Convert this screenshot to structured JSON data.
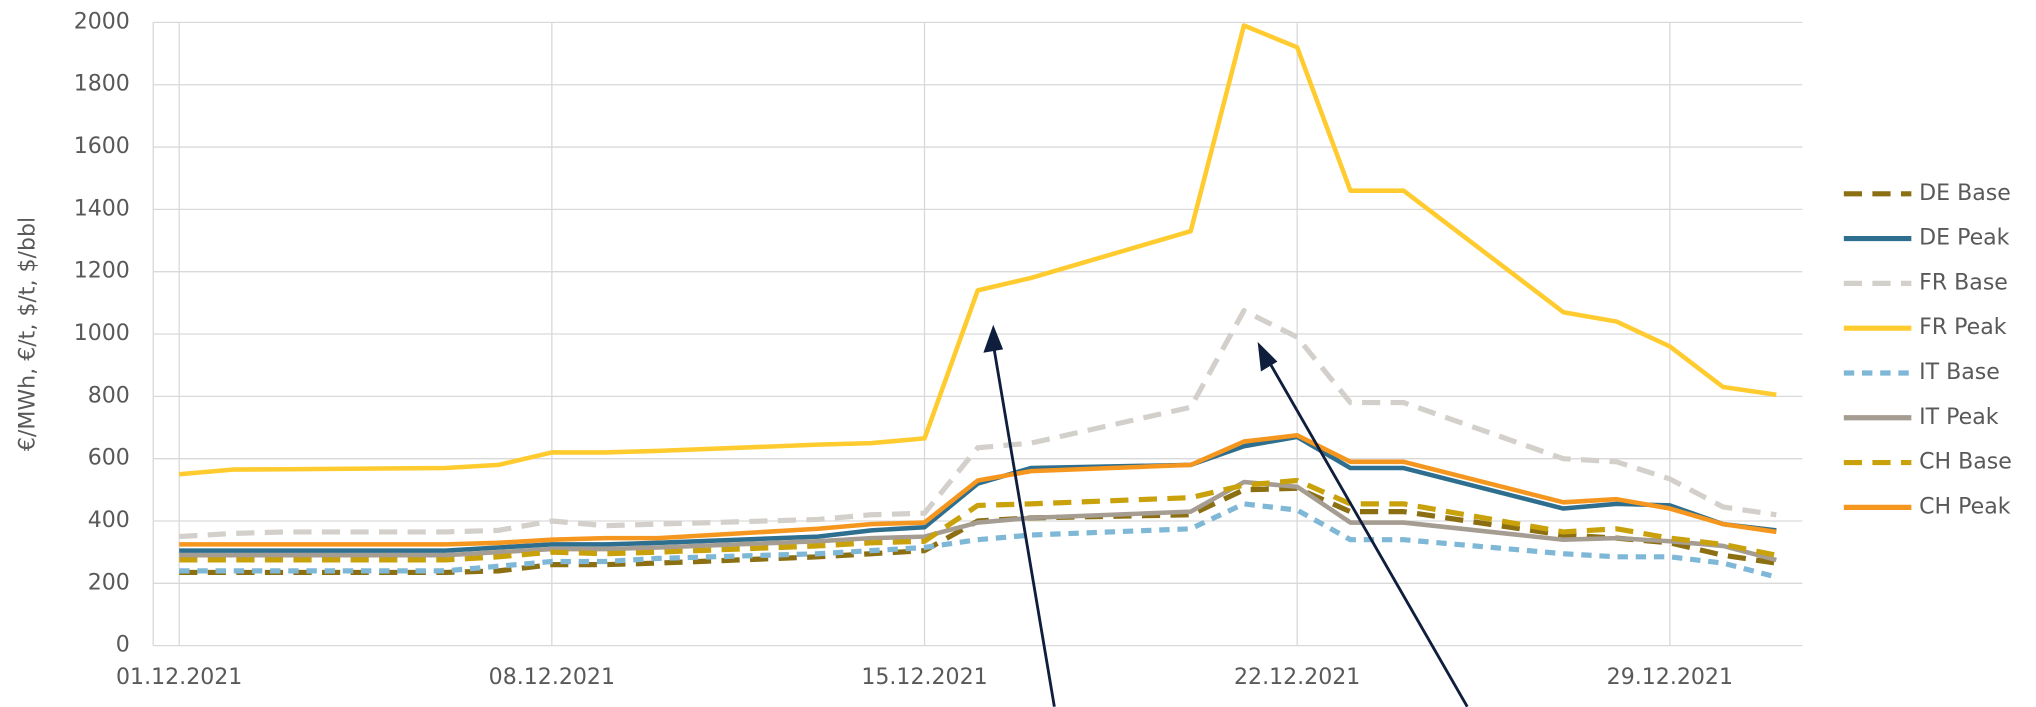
{
  "chart_data": {
    "type": "line",
    "y_label": "€/MWh, €/t, $/t, $/bbl",
    "x": [
      "01.12.2021",
      "02.12.2021",
      "03.12.2021",
      "06.12.2021",
      "07.12.2021",
      "08.12.2021",
      "09.12.2021",
      "10.12.2021",
      "13.12.2021",
      "14.12.2021",
      "15.12.2021",
      "16.12.2021",
      "17.12.2021",
      "20.12.2021",
      "21.12.2021",
      "22.12.2021",
      "23.12.2021",
      "24.12.2021",
      "27.12.2021",
      "28.12.2021",
      "29.12.2021",
      "30.12.2021",
      "31.12.2021"
    ],
    "xlim": [
      "01.12.2021",
      "31.12.2021"
    ],
    "xticks": [
      "01.12.2021",
      "08.12.2021",
      "15.12.2021",
      "22.12.2021",
      "29.12.2021"
    ],
    "ylim": [
      0,
      2000
    ],
    "yticks": [
      0,
      200,
      400,
      600,
      800,
      1000,
      1200,
      1400,
      1600,
      1800,
      2000
    ],
    "grid": true,
    "legend": "right",
    "series": [
      {
        "name": "DE Base",
        "color": "#8b6f12",
        "style": "dashed",
        "values": [
          235,
          235,
          235,
          235,
          240,
          260,
          260,
          265,
          285,
          295,
          305,
          400,
          410,
          420,
          500,
          505,
          430,
          430,
          355,
          345,
          330,
          290,
          265
        ]
      },
      {
        "name": "DE Peak",
        "color": "#2e6e8e",
        "style": "solid",
        "values": [
          305,
          305,
          305,
          305,
          315,
          325,
          325,
          330,
          350,
          370,
          380,
          520,
          570,
          580,
          640,
          670,
          570,
          570,
          440,
          455,
          450,
          390,
          370
        ]
      },
      {
        "name": "FR Base",
        "color": "#d3d0cb",
        "style": "dashed",
        "values": [
          350,
          360,
          365,
          365,
          370,
          400,
          385,
          390,
          405,
          420,
          425,
          635,
          650,
          765,
          1075,
          990,
          780,
          780,
          600,
          590,
          535,
          445,
          420
        ]
      },
      {
        "name": "FR Peak",
        "color": "#ffcb2f",
        "style": "solid",
        "values": [
          550,
          565,
          566,
          570,
          580,
          620,
          620,
          625,
          645,
          650,
          665,
          1140,
          1180,
          1330,
          1990,
          1920,
          1460,
          1460,
          1070,
          1040,
          960,
          830,
          805
        ]
      },
      {
        "name": "IT Base",
        "color": "#7fb8d6",
        "style": "dotted",
        "values": [
          240,
          240,
          240,
          240,
          255,
          270,
          270,
          280,
          295,
          305,
          315,
          340,
          355,
          375,
          455,
          435,
          340,
          340,
          295,
          285,
          285,
          265,
          220
        ]
      },
      {
        "name": "IT Peak",
        "color": "#a59c92",
        "style": "solid",
        "values": [
          290,
          290,
          290,
          290,
          300,
          310,
          310,
          315,
          335,
          345,
          350,
          395,
          410,
          430,
          525,
          510,
          395,
          395,
          340,
          345,
          335,
          320,
          275
        ]
      },
      {
        "name": "CH Base",
        "color": "#c9a10b",
        "style": "dashed",
        "values": [
          275,
          275,
          275,
          275,
          285,
          300,
          295,
          300,
          320,
          330,
          335,
          450,
          455,
          475,
          515,
          530,
          455,
          455,
          365,
          375,
          345,
          325,
          290
        ]
      },
      {
        "name": "CH Peak",
        "color": "#f5961e",
        "style": "solid",
        "values": [
          325,
          325,
          325,
          325,
          330,
          340,
          345,
          345,
          375,
          390,
          395,
          530,
          560,
          580,
          655,
          675,
          590,
          590,
          460,
          470,
          440,
          390,
          365
        ]
      }
    ]
  }
}
